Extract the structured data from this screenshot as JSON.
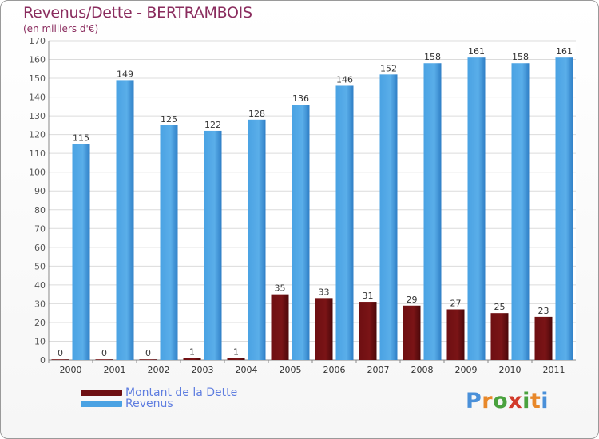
{
  "chart_data": {
    "type": "bar",
    "title": "Revenus/Dette - BERTRAMBOIS",
    "subtitle": "(en milliers d'€)",
    "categories": [
      "2000",
      "2001",
      "2002",
      "2003",
      "2004",
      "2005",
      "2006",
      "2007",
      "2008",
      "2009",
      "2010",
      "2011"
    ],
    "series": [
      {
        "name": "Montant de la Dette",
        "color": "#6e0f12",
        "values": [
          0,
          0,
          0,
          1,
          1,
          35,
          33,
          31,
          29,
          27,
          25,
          23
        ]
      },
      {
        "name": "Revenus",
        "color": "#4aa2e3",
        "values": [
          115,
          149,
          125,
          122,
          128,
          136,
          146,
          152,
          158,
          161,
          158,
          161
        ]
      }
    ],
    "ylim": [
      0,
      170
    ],
    "yticks": [
      0,
      10,
      20,
      30,
      40,
      50,
      60,
      70,
      80,
      90,
      100,
      110,
      120,
      130,
      140,
      150,
      160,
      170
    ],
    "grid": true,
    "legend_position": "bottom-left"
  },
  "logo": {
    "letters": [
      "P",
      "r",
      "o",
      "x",
      "i",
      "t",
      "i"
    ],
    "colors": [
      "#4a90d9",
      "#e8882a",
      "#4aa23e",
      "#d23a2a",
      "#4aa23e",
      "#e8882a",
      "#4a90d9"
    ]
  }
}
